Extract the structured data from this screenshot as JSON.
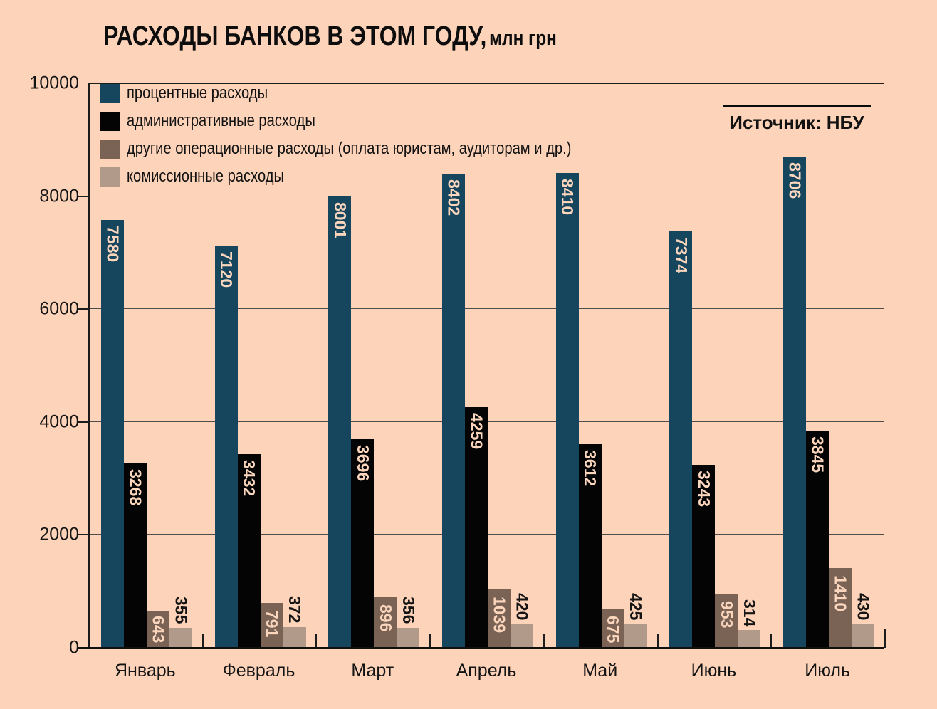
{
  "title": {
    "main": "РАСХОДЫ БАНКОВ В ЭТОМ ГОДУ,",
    "unit": "млн грн"
  },
  "source": {
    "label": "Источник: НБУ"
  },
  "colors": {
    "background": "#fdd3b9",
    "grid": "#4d4d4d",
    "axis": "#1c1c1c",
    "label_on_dark_bars": "#fbd6bd",
    "label_outside_bars": "#141414"
  },
  "chart_data": {
    "type": "bar",
    "title": "РАСХОДЫ БАНКОВ В ЭТОМ ГОДУ, млн грн",
    "xlabel": "",
    "ylabel": "",
    "ylim": [
      0,
      10000
    ],
    "yticks": [
      0,
      2000,
      4000,
      6000,
      8000,
      10000
    ],
    "grid": true,
    "legend_position": "top-left",
    "categories": [
      "Январь",
      "Февраль",
      "Март",
      "Апрель",
      "Май",
      "Июнь",
      "Июль"
    ],
    "series": [
      {
        "key": "interest",
        "name": "процентные расходы",
        "color": "#16455e",
        "label_color": "#fbd6bd",
        "label_placement": "inside-top",
        "values": [
          7580,
          7120,
          8001,
          8402,
          8410,
          7374,
          8706
        ]
      },
      {
        "key": "administrative",
        "name": "административные расходы",
        "color": "#040404",
        "label_color": "#fbd6bd",
        "label_placement": "inside-top",
        "values": [
          3268,
          3432,
          3696,
          4259,
          3612,
          3243,
          3845
        ]
      },
      {
        "key": "other-operational",
        "name": "другие операционные расходы (оплата юристам, аудиторам и др.)",
        "color": "#7a6355",
        "label_color": "#fbd6bd",
        "label_placement": "inside-chip",
        "values": [
          643,
          791,
          896,
          1039,
          675,
          953,
          1410
        ]
      },
      {
        "key": "commission",
        "name": "комиссионные расходы",
        "color": "#b29a8a",
        "label_color": "#141414",
        "label_placement": "outside-top",
        "values": [
          355,
          372,
          356,
          420,
          425,
          314,
          430
        ]
      }
    ]
  }
}
